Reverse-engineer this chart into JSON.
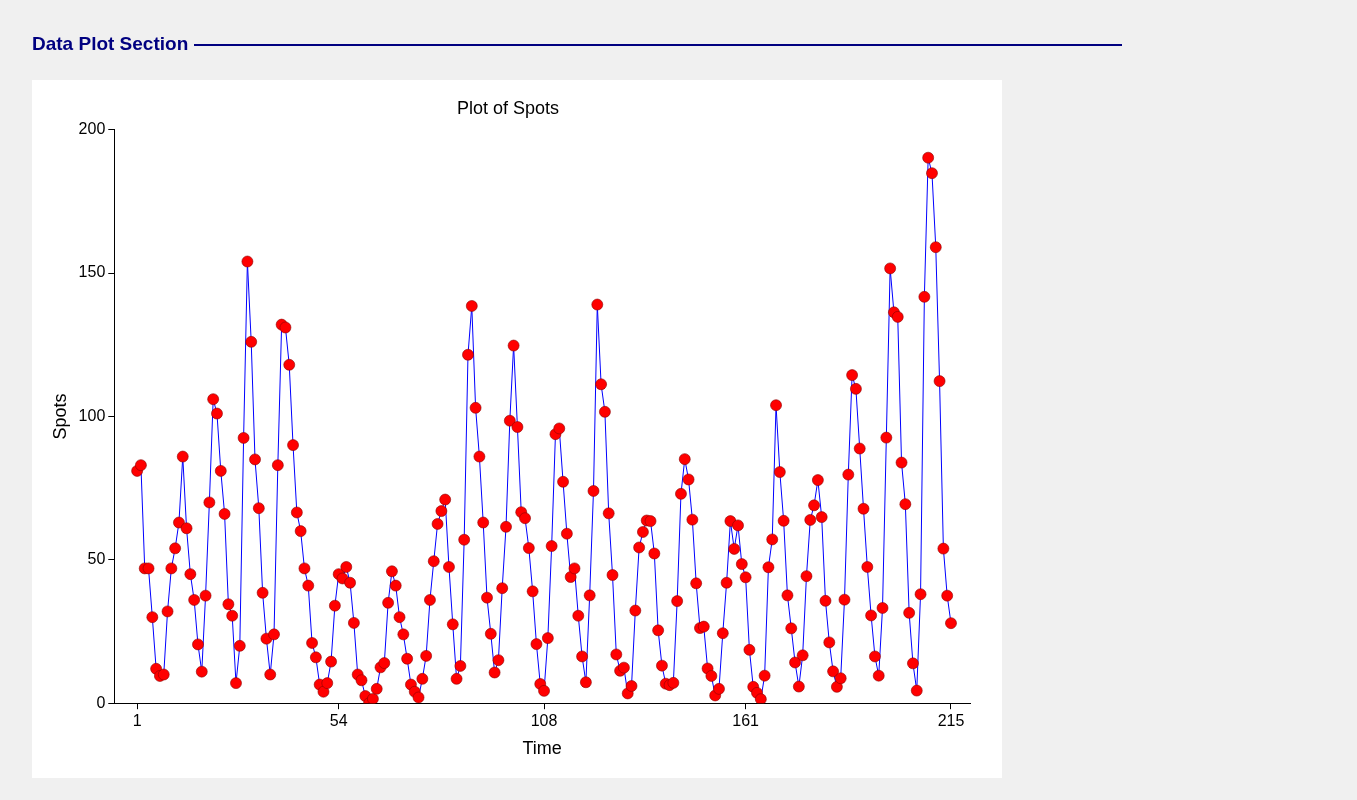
{
  "chart_data": {
    "type": "line",
    "title": "Plot of Spots",
    "xlabel": "Time",
    "ylabel": "Spots",
    "annotations": [
      "Data Plot Section"
    ],
    "xlim": [
      -5,
      220
    ],
    "xticks": [
      1,
      54,
      108,
      161,
      215
    ],
    "ylim": [
      0,
      200
    ],
    "yticks": [
      0,
      50,
      100,
      150,
      200
    ],
    "grid": false,
    "legend": false,
    "marker": "circle",
    "line_style": "solid",
    "x": [
      1,
      2,
      3,
      4,
      5,
      6,
      7,
      8,
      9,
      10,
      11,
      12,
      13,
      14,
      15,
      16,
      17,
      18,
      19,
      20,
      21,
      22,
      23,
      24,
      25,
      26,
      27,
      28,
      29,
      30,
      31,
      32,
      33,
      34,
      35,
      36,
      37,
      38,
      39,
      40,
      41,
      42,
      43,
      44,
      45,
      46,
      47,
      48,
      49,
      50,
      51,
      52,
      53,
      54,
      55,
      56,
      57,
      58,
      59,
      60,
      61,
      62,
      63,
      64,
      65,
      66,
      67,
      68,
      69,
      70,
      71,
      72,
      73,
      74,
      75,
      76,
      77,
      78,
      79,
      80,
      81,
      82,
      83,
      84,
      85,
      86,
      87,
      88,
      89,
      90,
      91,
      92,
      93,
      94,
      95,
      96,
      97,
      98,
      99,
      100,
      101,
      102,
      103,
      104,
      105,
      106,
      107,
      108,
      109,
      110,
      111,
      112,
      113,
      114,
      115,
      116,
      117,
      118,
      119,
      120,
      121,
      122,
      123,
      124,
      125,
      126,
      127,
      128,
      129,
      130,
      131,
      132,
      133,
      134,
      135,
      136,
      137,
      138,
      139,
      140,
      141,
      142,
      143,
      144,
      145,
      146,
      147,
      148,
      149,
      150,
      151,
      152,
      153,
      154,
      155,
      156,
      157,
      158,
      159,
      160,
      161,
      162,
      163,
      164,
      165,
      166,
      167,
      168,
      169,
      170,
      171,
      172,
      173,
      174,
      175,
      176,
      177,
      178,
      179,
      180,
      181,
      182,
      183,
      184,
      185,
      186,
      187,
      188,
      189,
      190,
      191,
      192,
      193,
      194,
      195,
      196,
      197,
      198,
      199,
      200,
      201,
      202,
      203,
      204,
      205,
      206,
      207,
      208,
      209,
      210,
      211,
      212,
      213,
      214,
      215
    ],
    "series": [
      {
        "color": "#0000ff",
        "colors": [
          "#ff0000",
          "#ff0000",
          "#ff0000",
          "#ff0000",
          "#ff0000",
          "#ff0000",
          "#ff0000",
          "#ff0000",
          "#ff0000",
          "#ff0000",
          "#ff0000",
          "#ff0000",
          "#ff0000",
          "#ff0000",
          "#ff0000",
          "#ff0000",
          "#ff0000",
          "#ff0000",
          "#ff0000",
          "#ff0000",
          "#ff0000",
          "#ff0000",
          "#ff0000",
          "#ff0000",
          "#ff0000",
          "#ff0000",
          "#ff0000",
          "#ff0000",
          "#ff0000",
          "#ff0000",
          "#ff0000",
          "#ff0000",
          "#ff0000",
          "#ff0000",
          "#ff0000",
          "#ff0000",
          "#ff0000",
          "#ff0000",
          "#ff0000",
          "#ff0000",
          "#ff0000",
          "#ff0000",
          "#ff0000",
          "#ff0000",
          "#ff0000",
          "#ff0000",
          "#ff0000",
          "#ff0000",
          "#ff0000",
          "#ff0000",
          "#ff0000",
          "#ff0000",
          "#ff0000",
          "#ff0000",
          "#ff0000",
          "#ff0000",
          "#ff0000",
          "#ff0000",
          "#ff0000",
          "#ff0000",
          "#ff0000",
          "#ff0000",
          "#ff0000",
          "#ff0000",
          "#ff0000",
          "#ff0000",
          "#ff0000",
          "#ff0000",
          "#ff0000",
          "#ff0000",
          "#ff0000",
          "#ff0000",
          "#ff0000",
          "#ff0000",
          "#ff0000",
          "#ff0000",
          "#ff0000",
          "#ff0000",
          "#ff0000",
          "#ff0000",
          "#ff0000",
          "#ff0000",
          "#ff0000",
          "#ff0000",
          "#ff0000",
          "#ff0000",
          "#ff0000",
          "#ff0000",
          "#ff0000",
          "#ff0000",
          "#ff0000",
          "#ff0000",
          "#ff0000",
          "#ff0000",
          "#ff0000",
          "#ff0000",
          "#ff0000",
          "#ff0000",
          "#ff0000",
          "#ff0000",
          "#ff0000",
          "#ff0000",
          "#ff0000",
          "#ff0000",
          "#ff0000",
          "#ff0000",
          "#ff0000",
          "#ff0000",
          "#ff0000",
          "#ff0000",
          "#ff0000",
          "#ff0000",
          "#ff0000",
          "#ff0000",
          "#ff0000",
          "#ff0000",
          "#ff0000",
          "#ff0000",
          "#ff0000",
          "#ff0000",
          "#ff0000",
          "#ff0000",
          "#ff0000",
          "#ff0000",
          "#ff0000",
          "#ff0000",
          "#ff0000",
          "#ff0000",
          "#ff0000",
          "#ff0000",
          "#ff0000",
          "#ff0000",
          "#ff0000",
          "#ff0000",
          "#ff0000",
          "#ff0000",
          "#ff0000",
          "#ff0000",
          "#ff0000",
          "#ff0000",
          "#ff0000",
          "#ff0000",
          "#ff0000",
          "#ff0000",
          "#ff0000",
          "#ff0000",
          "#ff0000",
          "#ff0000",
          "#ff0000",
          "#ff0000",
          "#ff0000",
          "#ff0000",
          "#ff0000",
          "#ff0000",
          "#ff0000",
          "#ff0000",
          "#ff0000",
          "#ff0000",
          "#ff0000",
          "#ff0000",
          "#ff0000",
          "#ff0000",
          "#ff0000",
          "#ff0000",
          "#ff0000",
          "#ff0000",
          "#ff0000",
          "#ff0000",
          "#ff0000",
          "#ff0000",
          "#ff0000",
          "#ff0000",
          "#ff0000",
          "#ff0000",
          "#ff0000",
          "#ff0000",
          "#ff0000",
          "#ff0000",
          "#ff0000",
          "#ff0000",
          "#ff0000",
          "#ff0000",
          "#ff0000",
          "#ff0000",
          "#ff0000",
          "#ff0000",
          "#ff0000",
          "#ff0000",
          "#ff0000",
          "#ff0000",
          "#ff0000",
          "#ff0000",
          "#ff0000",
          "#ff0000",
          "#ff0000",
          "#ff0000",
          "#ff0000",
          "#ff0000",
          "#ff0000",
          "#ff0000",
          "#ff0000",
          "#ff0000",
          "#ff0000",
          "#ff0000",
          "#ff0000",
          "#ff0000",
          "#ff0000",
          "#ff0000",
          "#ff0000",
          "#ff0000",
          "#ff0000",
          "#ff0000",
          "#ff0000",
          "#ff0000",
          "#ff0000"
        ],
        "values": [
          81,
          83,
          47,
          47,
          30,
          12,
          9.5,
          10,
          32,
          47,
          54,
          63,
          86,
          61,
          45,
          36,
          20.5,
          11,
          37.5,
          70,
          106,
          101,
          81,
          66,
          34.5,
          30.5,
          7,
          20,
          92.5,
          154,
          126,
          85,
          68,
          38.5,
          22.5,
          10,
          24,
          83,
          132,
          131,
          118,
          90,
          66.5,
          60,
          47,
          41,
          21,
          16,
          6.5,
          4,
          7,
          14.5,
          34,
          45,
          43.5,
          47.5,
          42,
          28,
          10,
          8,
          2.5,
          0,
          1.5,
          5,
          12.5,
          14,
          35,
          46,
          41,
          30,
          24,
          15.5,
          6.5,
          4,
          2,
          8.5,
          16.5,
          36,
          49.5,
          62.5,
          67,
          71,
          47.5,
          27.5,
          8.5,
          13,
          57,
          121.5,
          138.5,
          103,
          86,
          63,
          36.8,
          24.2,
          10.7,
          15,
          40.1,
          61.5,
          98.5,
          124.7,
          96.3,
          66.6,
          64.5,
          54.1,
          39,
          20.6,
          6.7,
          4.3,
          22.7,
          54.8,
          93.8,
          95.8,
          77.2,
          59.1,
          44,
          47,
          30.5,
          16.3,
          7.3,
          37.6,
          74,
          139,
          111.2,
          101.6,
          66.2,
          44.7,
          17,
          11.3,
          12.4,
          3.4,
          6,
          32.3,
          54.3,
          59.7,
          63.7,
          63.5,
          52.2,
          25.4,
          13.1,
          6.8,
          6.3,
          7.1,
          35.6,
          73,
          85.1,
          78,
          64,
          41.8,
          26.2,
          26.7,
          12.1,
          9.5,
          2.7,
          5,
          24.4,
          42,
          63.5,
          53.8,
          62,
          48.5,
          43.9,
          18.6,
          5.7,
          3.6,
          1.4,
          9.6,
          47.4,
          57.1,
          103.9,
          80.6,
          63.6,
          37.6,
          26.1,
          14.2,
          5.8,
          16.7,
          44.3,
          63.9,
          69,
          77.8,
          64.9,
          35.7,
          21.2,
          11.1,
          5.7,
          8.7,
          36.1,
          79.7,
          114.4,
          109.6,
          88.8,
          67.8,
          47.5,
          30.6,
          16.3,
          9.6,
          33.2,
          92.6,
          151.6,
          136.3,
          134.7,
          83.9,
          69.4,
          31.5,
          13.9,
          4.4,
          38,
          141.7,
          190.2,
          184.8,
          159,
          112.3,
          53.9,
          37.5,
          27.9
        ]
      }
    ]
  }
}
